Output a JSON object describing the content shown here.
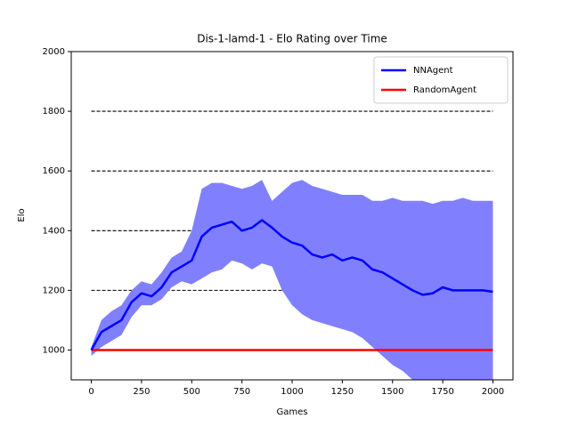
{
  "chart_data": {
    "type": "line",
    "title": "Dis-1-lamd-1 - Elo Rating over Time",
    "xlabel": "Games",
    "ylabel": "Elo",
    "x": [
      0,
      50,
      100,
      150,
      200,
      250,
      300,
      350,
      400,
      450,
      500,
      550,
      600,
      650,
      700,
      750,
      800,
      850,
      900,
      950,
      1000,
      1050,
      1100,
      1150,
      1200,
      1250,
      1300,
      1350,
      1400,
      1450,
      1500,
      1550,
      1600,
      1650,
      1700,
      1750,
      1800,
      1850,
      1900,
      1950,
      2000
    ],
    "series": [
      {
        "name": "NNAgent",
        "color": "#0000ff",
        "band_color": "#8080ff",
        "values": [
          1000,
          1060,
          1080,
          1100,
          1160,
          1190,
          1180,
          1210,
          1260,
          1280,
          1300,
          1380,
          1410,
          1420,
          1430,
          1400,
          1410,
          1435,
          1410,
          1380,
          1360,
          1350,
          1320,
          1310,
          1320,
          1300,
          1310,
          1300,
          1270,
          1260,
          1240,
          1220,
          1200,
          1185,
          1190,
          1210,
          1200,
          1200,
          1200,
          1200,
          1195
        ],
        "upper": [
          1010,
          1100,
          1130,
          1150,
          1200,
          1230,
          1220,
          1260,
          1310,
          1330,
          1400,
          1540,
          1560,
          1560,
          1550,
          1540,
          1550,
          1570,
          1500,
          1530,
          1560,
          1570,
          1550,
          1540,
          1530,
          1520,
          1520,
          1520,
          1500,
          1500,
          1510,
          1500,
          1500,
          1500,
          1490,
          1500,
          1500,
          1510,
          1500,
          1500,
          1500
        ],
        "lower": [
          980,
          1010,
          1030,
          1050,
          1110,
          1150,
          1150,
          1170,
          1210,
          1230,
          1220,
          1240,
          1260,
          1270,
          1300,
          1290,
          1270,
          1290,
          1280,
          1200,
          1150,
          1120,
          1100,
          1090,
          1080,
          1070,
          1060,
          1040,
          1010,
          980,
          950,
          930,
          900,
          880,
          870,
          860,
          850,
          845,
          840,
          830,
          820
        ]
      },
      {
        "name": "RandomAgent",
        "color": "#ff0000",
        "values": [
          1000,
          1000,
          1000,
          1000,
          1000,
          1000,
          1000,
          1000,
          1000,
          1000,
          1000,
          1000,
          1000,
          1000,
          1000,
          1000,
          1000,
          1000,
          1000,
          1000,
          1000,
          1000,
          1000,
          1000,
          1000,
          1000,
          1000,
          1000,
          1000,
          1000,
          1000,
          1000,
          1000,
          1000,
          1000,
          1000,
          1000,
          1000,
          1000,
          1000,
          1000
        ]
      }
    ],
    "xlim": [
      -100,
      2100
    ],
    "xticks": [
      0,
      250,
      500,
      750,
      1000,
      1250,
      1500,
      1750,
      2000
    ],
    "ylim": [
      900,
      2000
    ],
    "yticks": [
      1000,
      1200,
      1400,
      1600,
      1800,
      2000
    ],
    "hlines": [
      1200,
      1400,
      1600,
      1800
    ],
    "legend": "upper right"
  }
}
